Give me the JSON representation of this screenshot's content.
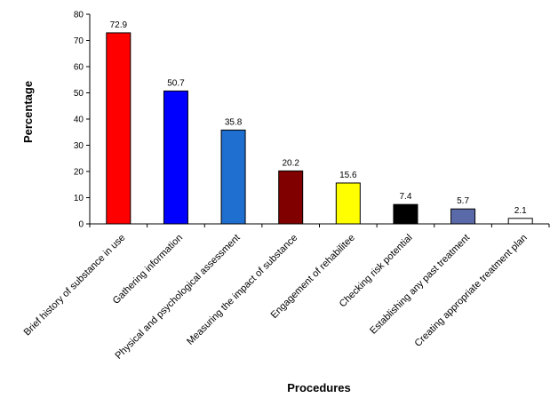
{
  "chart_data": {
    "type": "bar",
    "title": "",
    "xlabel": "Procedures",
    "ylabel": "Percentage",
    "ylim": [
      0,
      80
    ],
    "yticks": [
      0,
      10,
      20,
      30,
      40,
      50,
      60,
      70,
      80
    ],
    "grid": false,
    "legend": "none",
    "categories": [
      "Brief history of substance in use",
      "Gathering information",
      "Physical and psychological assessment",
      "Measuring the impact of substance",
      "Engagement of rehabilitee",
      "Checking risk potential",
      "Establishing any past treatment",
      "Creating appropriate treatment plan"
    ],
    "values": [
      72.9,
      50.7,
      35.8,
      20.2,
      15.6,
      7.4,
      5.7,
      2.1
    ],
    "data_labels": [
      "72.9",
      "50.7",
      "35.8",
      "20.2",
      "15.6",
      "7.4",
      "5.7",
      "2.1"
    ],
    "colors": [
      "#ff0000",
      "#0000ff",
      "#1f6fd0",
      "#800000",
      "#ffff00",
      "#000000",
      "#5a6aa8",
      "#ffffff"
    ]
  }
}
